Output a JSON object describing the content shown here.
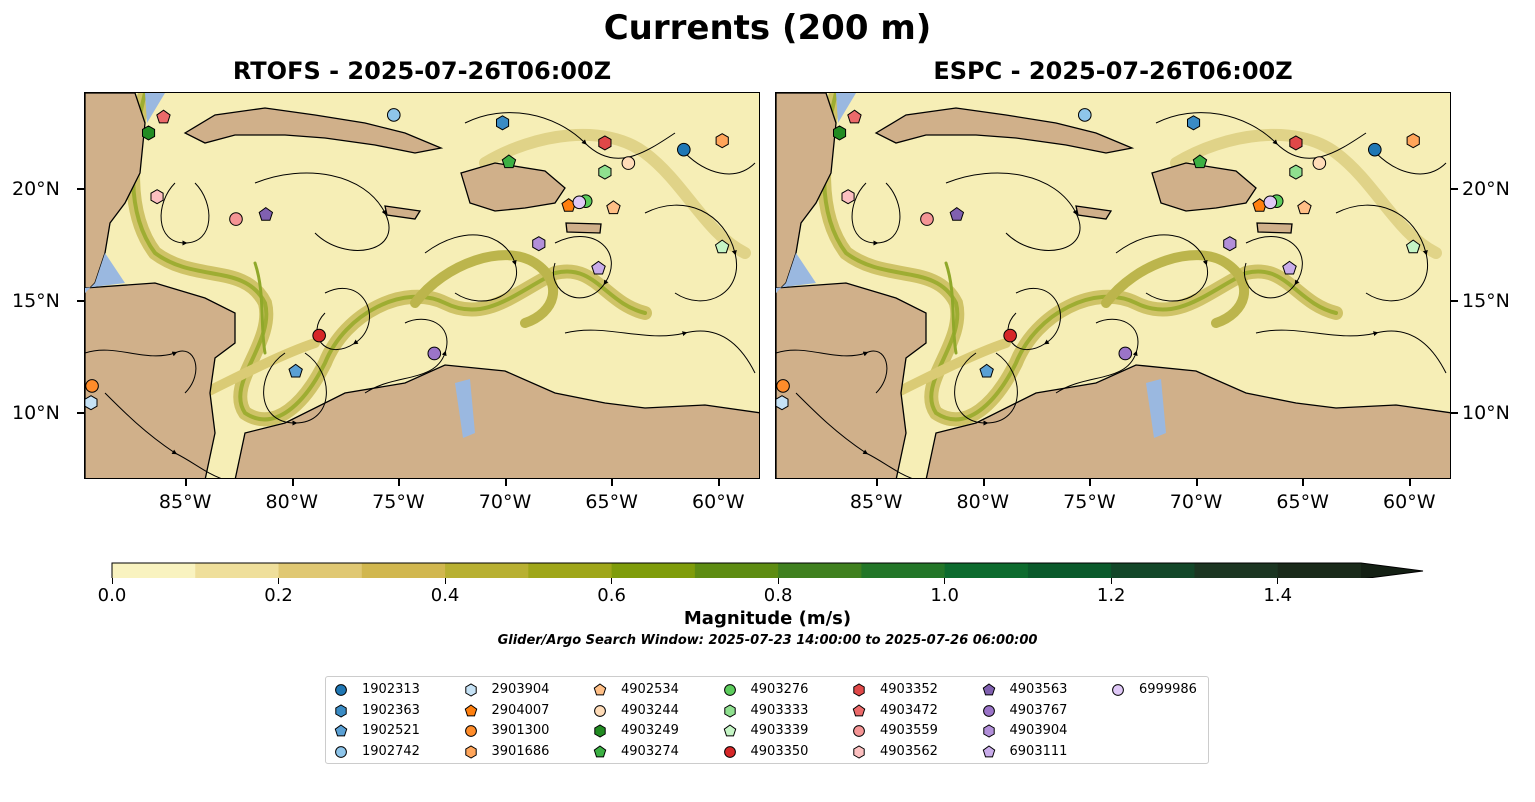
{
  "title": "Currents (200 m)",
  "panels": [
    {
      "title": "RTOFS - 2025-07-26T06:00Z",
      "lat_labels_side": "left"
    },
    {
      "title": "ESPC - 2025-07-26T06:00Z",
      "lat_labels_side": "right"
    }
  ],
  "map_extent": {
    "lon": [
      -89.78,
      -58.08
    ],
    "lat": [
      7.05,
      24.33
    ]
  },
  "lon_ticks": [
    {
      "value": -85,
      "label": "85°W"
    },
    {
      "value": -80,
      "label": "80°W"
    },
    {
      "value": -75,
      "label": "75°W"
    },
    {
      "value": -70,
      "label": "70°W"
    },
    {
      "value": -65,
      "label": "65°W"
    },
    {
      "value": -60,
      "label": "60°W"
    }
  ],
  "lat_ticks": [
    {
      "value": 10,
      "label": "10°N"
    },
    {
      "value": 15,
      "label": "15°N"
    },
    {
      "value": 20,
      "label": "20°N"
    }
  ],
  "colorbar": {
    "label": "Magnitude (m/s)",
    "range": [
      0,
      1.5
    ],
    "extend": "max",
    "tick_labels": [
      "0.0",
      "0.2",
      "0.4",
      "0.6",
      "0.8",
      "1.0",
      "1.2",
      "1.4"
    ],
    "colors": [
      "#f9f3c0",
      "#efdf9b",
      "#e0c873",
      "#d1b74f",
      "#b8b032",
      "#9fa619",
      "#7f9c0a",
      "#5e8c12",
      "#40801f",
      "#237628",
      "#0d6b2e",
      "#0a5a2b",
      "#134729",
      "#1c3622",
      "#1a2a1a"
    ],
    "extend_color": "#142014"
  },
  "search_window": "Glider/Argo Search Window: 2025-07-23 14:00:00 to 2025-07-26 06:00:00",
  "platforms": [
    {
      "id": "1902313",
      "marker": "circle",
      "color": "#1f77b4",
      "lon": -61.7,
      "lat": 21.8
    },
    {
      "id": "1902363",
      "marker": "hexagon",
      "color": "#3a8bc4",
      "lon": -70.2,
      "lat": 23.0
    },
    {
      "id": "1902521",
      "marker": "pentagon",
      "color": "#5aa0d4",
      "lon": -79.9,
      "lat": 11.9
    },
    {
      "id": "1902742",
      "marker": "circle",
      "color": "#8ec5ea",
      "lon": -75.3,
      "lat": 23.35
    },
    {
      "id": "2903904",
      "marker": "hexagon",
      "color": "#c6e2f5",
      "lon": -89.5,
      "lat": 10.5
    },
    {
      "id": "2904007",
      "marker": "pentagon",
      "color": "#ff7f0e",
      "lon": -67.1,
      "lat": 19.3
    },
    {
      "id": "3901300",
      "marker": "circle",
      "color": "#ff8c2a",
      "lon": -89.45,
      "lat": 11.25
    },
    {
      "id": "3901686",
      "marker": "hexagon",
      "color": "#ffa55a",
      "lon": -59.9,
      "lat": 22.2
    },
    {
      "id": "4902534",
      "marker": "pentagon",
      "color": "#ffbf86",
      "lon": -65.0,
      "lat": 19.2
    },
    {
      "id": "4903244",
      "marker": "circle",
      "color": "#ffdcb8",
      "lon": -64.3,
      "lat": 21.2
    },
    {
      "id": "4903249",
      "marker": "hexagon",
      "color": "#228b22",
      "lon": -86.8,
      "lat": 22.55
    },
    {
      "id": "4903274",
      "marker": "pentagon",
      "color": "#3cb043",
      "lon": -69.9,
      "lat": 21.25
    },
    {
      "id": "4903276",
      "marker": "circle",
      "color": "#5ccc5c",
      "lon": -66.3,
      "lat": 19.5
    },
    {
      "id": "4903333",
      "marker": "hexagon",
      "color": "#8fe08f",
      "lon": -65.4,
      "lat": 20.8
    },
    {
      "id": "4903339",
      "marker": "pentagon",
      "color": "#c5f5c5",
      "lon": -59.9,
      "lat": 17.45
    },
    {
      "id": "4903350",
      "marker": "circle",
      "color": "#d62728",
      "lon": -78.8,
      "lat": 13.5
    },
    {
      "id": "4903352",
      "marker": "hexagon",
      "color": "#e04848",
      "lon": -65.4,
      "lat": 22.1
    },
    {
      "id": "4903472",
      "marker": "pentagon",
      "color": "#ec6a6a",
      "lon": -86.1,
      "lat": 23.25
    },
    {
      "id": "4903559",
      "marker": "circle",
      "color": "#f59595",
      "lon": -82.7,
      "lat": 18.7
    },
    {
      "id": "4903562",
      "marker": "hexagon",
      "color": "#fcc0c0",
      "lon": -86.4,
      "lat": 19.7
    },
    {
      "id": "4903563",
      "marker": "pentagon",
      "color": "#8060b0",
      "lon": -81.3,
      "lat": 18.9
    },
    {
      "id": "4903767",
      "marker": "circle",
      "color": "#9b74c8",
      "lon": -73.4,
      "lat": 12.7
    },
    {
      "id": "4903904",
      "marker": "hexagon",
      "color": "#b28fd9",
      "lon": -68.5,
      "lat": 17.6
    },
    {
      "id": "6903111",
      "marker": "pentagon",
      "color": "#c9acea",
      "lon": -65.7,
      "lat": 16.5
    },
    {
      "id": "6999986",
      "marker": "circle",
      "color": "#dfc8f7",
      "lon": -66.6,
      "lat": 19.45
    }
  ]
}
